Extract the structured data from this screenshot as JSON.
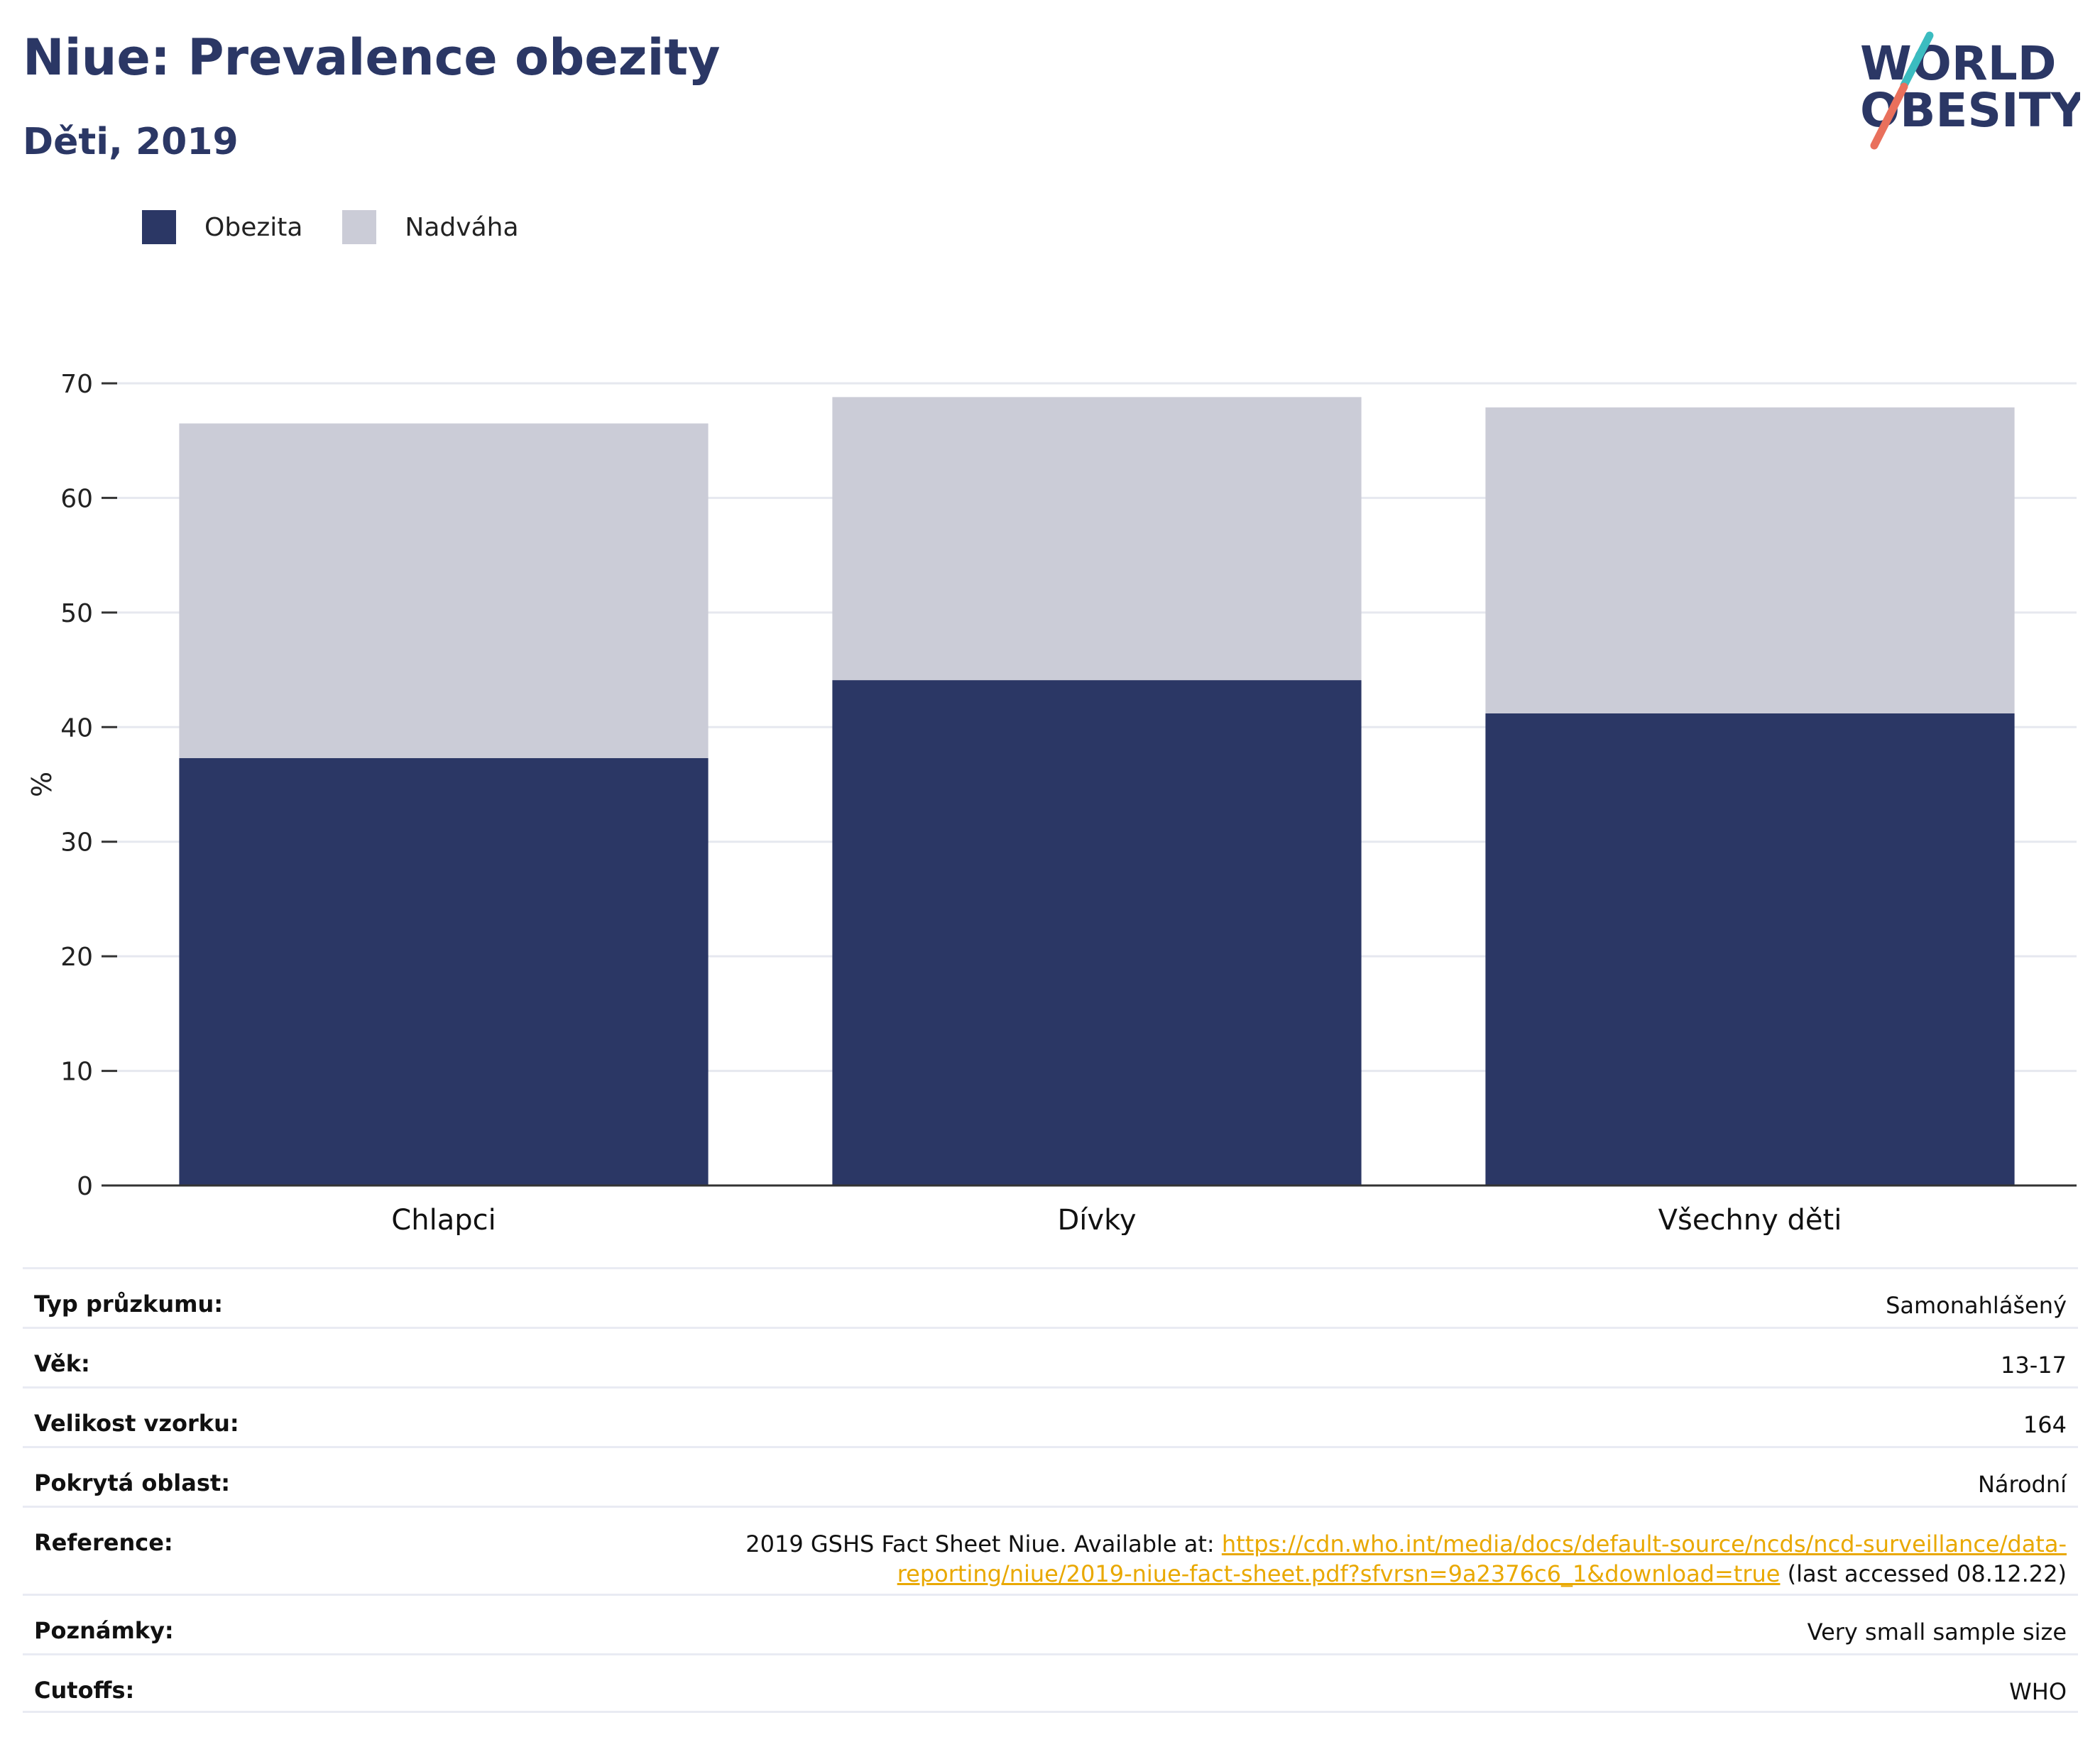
{
  "header": {
    "title": "Niue: Prevalence obezity",
    "subtitle": "Děti, 2019"
  },
  "logo": {
    "line1": "WORLD",
    "line2": "OBESITY",
    "colors": {
      "navy": "#2b3765",
      "teal": "#3bbcc0",
      "coral": "#e9705c"
    }
  },
  "legend": [
    {
      "label": "Obezita",
      "color": "#2b3765"
    },
    {
      "label": "Nadváha",
      "color": "#cbccd7"
    }
  ],
  "chart_data": {
    "type": "bar",
    "stacked": true,
    "categories": [
      "Chlapci",
      "Dívky",
      "Všechny děti"
    ],
    "series": [
      {
        "name": "Obezita",
        "color": "#2b3765",
        "values": [
          37.3,
          44.1,
          41.2
        ]
      },
      {
        "name": "Nadváha",
        "color": "#cbccd7",
        "values": [
          29.2,
          24.7,
          26.7
        ]
      }
    ],
    "ylabel": "%",
    "ylim": [
      0,
      70
    ],
    "yticks": [
      0,
      10,
      20,
      30,
      40,
      50,
      60,
      70
    ],
    "grid": true
  },
  "info": {
    "rows": [
      {
        "key": "Typ průzkumu:",
        "value": "Samonahlášený"
      },
      {
        "key": "Věk:",
        "value": "13-17"
      },
      {
        "key": "Velikost vzorku:",
        "value": "164"
      },
      {
        "key": "Pokrytá oblast:",
        "value": "Národní"
      }
    ],
    "reference": {
      "key": "Reference:",
      "prefix": "2019 GSHS Fact Sheet Niue. Available at: ",
      "link": "https://cdn.who.int/media/docs/default-source/ncds/ncd-surveillance/data-reporting/niue/2019-niue-fact-sheet.pdf?sfvrsn=9a2376c6_1&download=true",
      "suffix": " (last accessed 08.12.22)"
    },
    "rows_after": [
      {
        "key": "Poznámky:",
        "value": "Very small sample size"
      },
      {
        "key": "Cutoffs:",
        "value": "WHO"
      }
    ]
  }
}
